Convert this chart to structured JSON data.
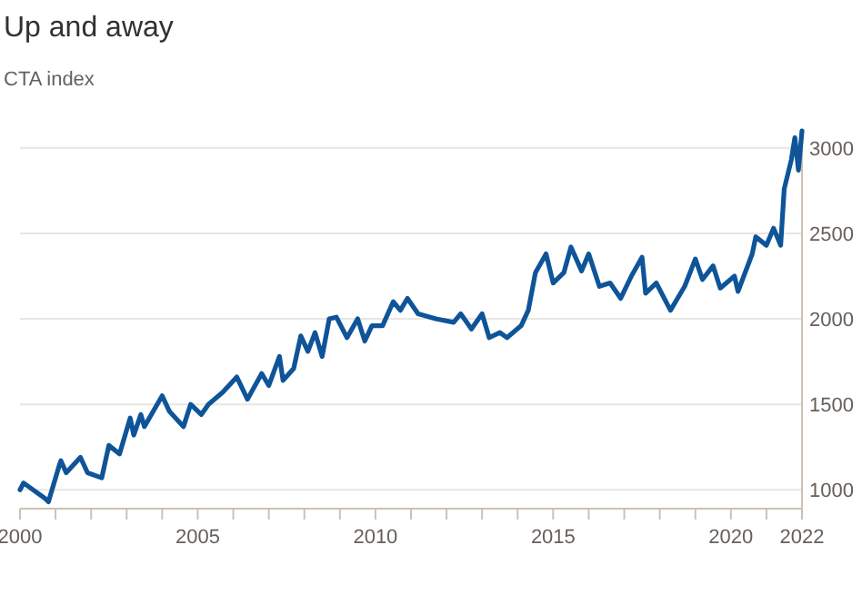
{
  "chart_data": {
    "type": "line",
    "title": "Up and away",
    "subtitle": "CTA index",
    "x": [
      2000.0,
      2000.1,
      2000.7,
      2000.8,
      2001.1,
      2001.15,
      2001.3,
      2001.7,
      2001.9,
      2002.3,
      2002.5,
      2002.8,
      2003.1,
      2003.2,
      2003.4,
      2003.5,
      2004.0,
      2004.2,
      2004.6,
      2004.8,
      2005.1,
      2005.3,
      2005.7,
      2006.1,
      2006.4,
      2006.8,
      2007.0,
      2007.3,
      2007.4,
      2007.7,
      2007.9,
      2008.1,
      2008.3,
      2008.5,
      2008.7,
      2008.9,
      2009.2,
      2009.5,
      2009.7,
      2009.9,
      2010.2,
      2010.5,
      2010.7,
      2010.9,
      2011.2,
      2011.7,
      2012.2,
      2012.4,
      2012.7,
      2013.0,
      2013.2,
      2013.5,
      2013.7,
      2014.1,
      2014.3,
      2014.5,
      2014.8,
      2015.0,
      2015.3,
      2015.5,
      2015.8,
      2016.0,
      2016.3,
      2016.6,
      2016.9,
      2017.2,
      2017.5,
      2017.6,
      2017.9,
      2018.2,
      2018.3,
      2018.7,
      2019.0,
      2019.2,
      2019.5,
      2019.7,
      2020.1,
      2020.2,
      2020.6,
      2020.7,
      2021.0,
      2021.2,
      2021.4,
      2021.5,
      2021.7,
      2021.8,
      2021.9,
      2022.0
    ],
    "series": [
      {
        "color": "#0f5499",
        "values": [
          1000,
          1040,
          950,
          930,
          1140,
          1170,
          1100,
          1190,
          1100,
          1070,
          1260,
          1210,
          1420,
          1320,
          1440,
          1370,
          1550,
          1460,
          1370,
          1500,
          1440,
          1500,
          1570,
          1660,
          1530,
          1680,
          1610,
          1780,
          1640,
          1710,
          1900,
          1810,
          1920,
          1780,
          2000,
          2010,
          1890,
          2000,
          1870,
          1960,
          1960,
          2100,
          2050,
          2120,
          2030,
          2000,
          1980,
          2030,
          1940,
          2030,
          1890,
          1920,
          1890,
          1960,
          2050,
          2270,
          2380,
          2210,
          2270,
          2420,
          2280,
          2380,
          2190,
          2210,
          2120,
          2250,
          2360,
          2150,
          2210,
          2090,
          2050,
          2190,
          2350,
          2230,
          2310,
          2180,
          2250,
          2160,
          2380,
          2480,
          2430,
          2530,
          2430,
          2760,
          2930,
          3060,
          2870,
          3100
        ]
      }
    ],
    "xlim": [
      2000,
      2022
    ],
    "xticks": [
      2000,
      {
        "value": 2001,
        "label": null
      },
      {
        "value": 2002,
        "label": null
      },
      {
        "value": 2003,
        "label": null
      },
      {
        "value": 2004,
        "label": null
      },
      2005,
      {
        "value": 2006,
        "label": null
      },
      {
        "value": 2007,
        "label": null
      },
      {
        "value": 2008,
        "label": null
      },
      {
        "value": 2009,
        "label": null
      },
      2010,
      {
        "value": 2011,
        "label": null
      },
      {
        "value": 2012,
        "label": null
      },
      {
        "value": 2013,
        "label": null
      },
      {
        "value": 2014,
        "label": null
      },
      2015,
      {
        "value": 2016,
        "label": null
      },
      {
        "value": 2017,
        "label": null
      },
      {
        "value": 2018,
        "label": null
      },
      {
        "value": 2019,
        "label": null
      },
      2020,
      {
        "value": 2021,
        "label": null
      },
      2022
    ],
    "ylim": [
      890,
      3100
    ],
    "yticks": [
      1000,
      1500,
      2000,
      2500,
      3000
    ],
    "grid": "y"
  }
}
